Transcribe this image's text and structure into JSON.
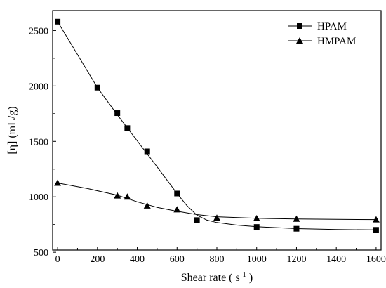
{
  "chart_data": {
    "type": "line",
    "title": "",
    "xlabel": "Shear rate ( s",
    "xlabel_sup": "-1",
    "xlabel_end": " )",
    "ylabel": "[η] (mL/g)",
    "xlim": [
      -25,
      1625
    ],
    "ylim": [
      520,
      2680
    ],
    "xticks": [
      0,
      200,
      400,
      600,
      800,
      1000,
      1200,
      1400,
      1600
    ],
    "yticks": [
      500,
      1000,
      1500,
      2000,
      2500
    ],
    "xtick_labels": [
      "0",
      "200",
      "400",
      "600",
      "800",
      "1000",
      "1200",
      "1400",
      "1600"
    ],
    "ytick_labels": [
      "500",
      "1000",
      "1500",
      "2000",
      "2500"
    ],
    "legend_position": "top-right",
    "series": [
      {
        "name": "HPAM",
        "marker": "square",
        "color": "#000000",
        "points": [
          [
            0,
            2580
          ],
          [
            200,
            1985
          ],
          [
            300,
            1755
          ],
          [
            350,
            1620
          ],
          [
            450,
            1410
          ],
          [
            600,
            1030
          ],
          [
            700,
            790
          ],
          [
            1000,
            728
          ],
          [
            1200,
            712
          ],
          [
            1600,
            702
          ]
        ],
        "fit": [
          [
            0,
            2580
          ],
          [
            200,
            1985
          ],
          [
            300,
            1740
          ],
          [
            400,
            1505
          ],
          [
            500,
            1270
          ],
          [
            600,
            1030
          ],
          [
            650,
            920
          ],
          [
            700,
            835
          ],
          [
            750,
            790
          ],
          [
            800,
            768
          ],
          [
            900,
            745
          ],
          [
            1000,
            730
          ],
          [
            1200,
            713
          ],
          [
            1400,
            705
          ],
          [
            1600,
            702
          ]
        ]
      },
      {
        "name": "HMPAM",
        "marker": "triangle",
        "color": "#000000",
        "points": [
          [
            0,
            1125
          ],
          [
            300,
            1010
          ],
          [
            350,
            1000
          ],
          [
            450,
            920
          ],
          [
            600,
            885
          ],
          [
            800,
            810
          ],
          [
            1000,
            805
          ],
          [
            1200,
            800
          ],
          [
            1600,
            795
          ]
        ],
        "fit": [
          [
            0,
            1125
          ],
          [
            150,
            1075
          ],
          [
            300,
            1015
          ],
          [
            400,
            955
          ],
          [
            500,
            905
          ],
          [
            600,
            870
          ],
          [
            700,
            840
          ],
          [
            800,
            820
          ],
          [
            1000,
            806
          ],
          [
            1200,
            800
          ],
          [
            1400,
            797
          ],
          [
            1600,
            795
          ]
        ]
      }
    ]
  }
}
